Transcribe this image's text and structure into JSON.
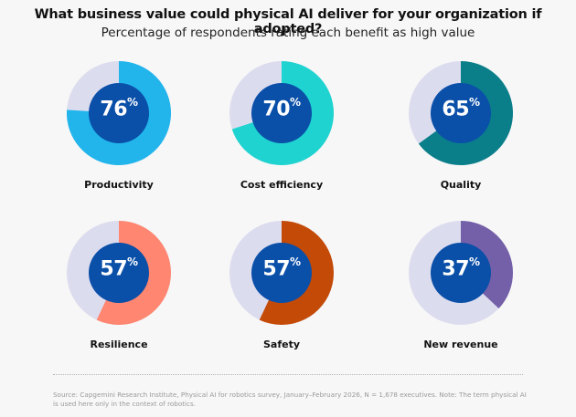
{
  "title": "What business value could physical AI deliver for your organization if adopted?",
  "subtitle": "Percentage of respondents rating each benefit as high value",
  "source": "Source: Capgemini Research Institute, Physical AI for robotics survey, January–February 2026, N = 1,678 executives. Note: The term physical AI is used here only in the context of robotics.",
  "colors": {
    "track": "#dcdcef",
    "inner": "#0a4fa8",
    "text_on_inner": "#ffffff"
  },
  "chart_data": {
    "type": "pie",
    "unit": "%",
    "categories": [
      "Productivity",
      "Cost efficiency",
      "Quality",
      "Resilience",
      "Safety",
      "New revenue"
    ],
    "values": [
      76,
      70,
      65,
      57,
      57,
      37
    ],
    "value_labels": [
      "76",
      "70",
      "65",
      "57",
      "57",
      "37"
    ],
    "series_colors": [
      "#22b5ec",
      "#1fd3d0",
      "#0a7f8a",
      "#ff8670",
      "#c44a08",
      "#7460a8"
    ]
  }
}
